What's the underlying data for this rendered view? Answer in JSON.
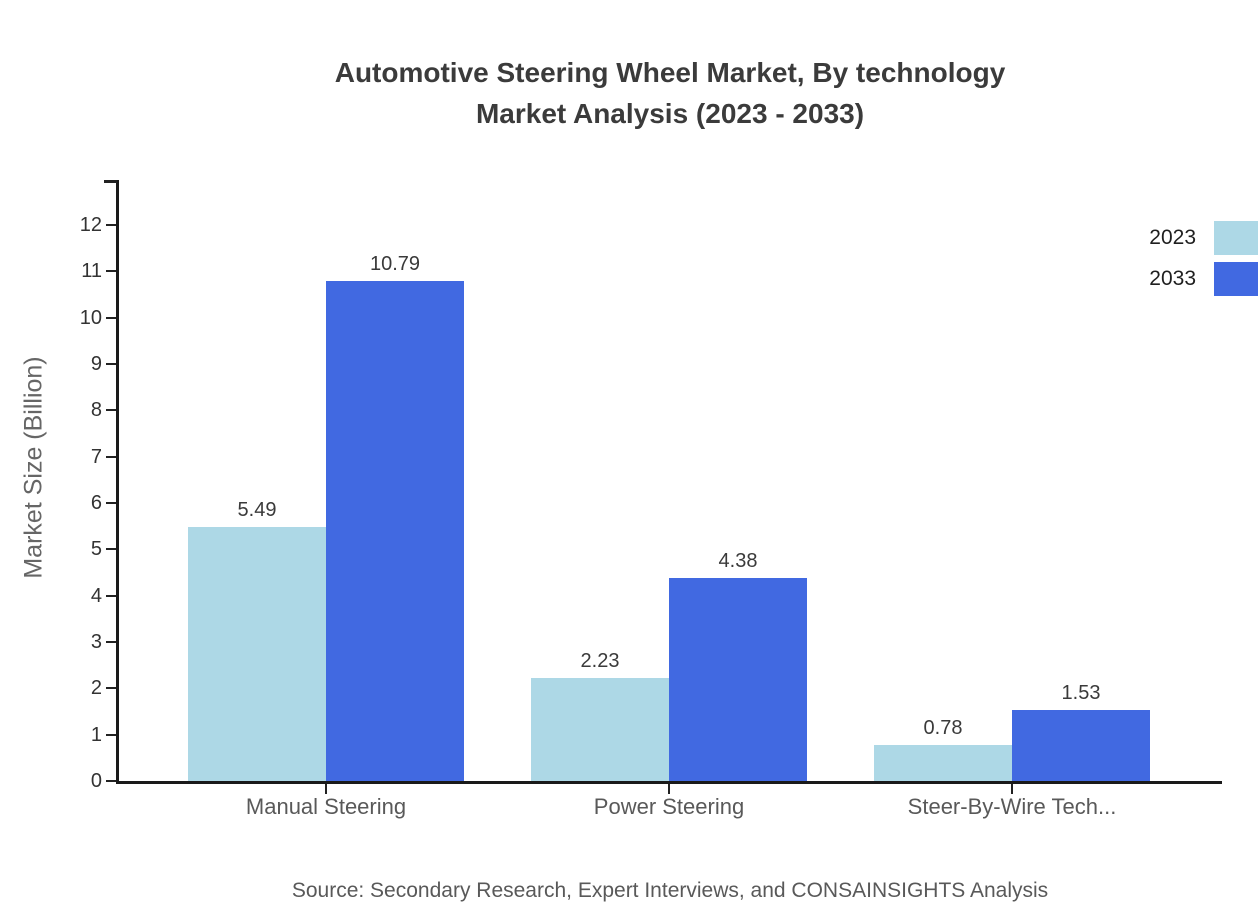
{
  "title": {
    "line1": "Automotive Steering Wheel Market, By technology",
    "line2": "Market Analysis (2023 - 2033)"
  },
  "y_axis_label": "Market Size (Billion)",
  "source_note": "Source: Secondary Research, Expert Interviews, and CONSAINSIGHTS Analysis",
  "colors": {
    "series_2023": "#ADD8E6",
    "series_2033": "#4169E1",
    "axis": "#1a1a1a",
    "title_text": "#3b3b3b",
    "muted_text": "#595959",
    "value_label_text": "#3a3a3a"
  },
  "chart_data": {
    "type": "bar",
    "title": "Automotive Steering Wheel Market, By technology Market Analysis (2023 - 2033)",
    "categories": [
      "Manual Steering",
      "Power Steering",
      "Steer-By-Wire Tech..."
    ],
    "series": [
      {
        "name": "2023",
        "color": "#ADD8E6",
        "values": [
          5.49,
          2.23,
          0.78
        ]
      },
      {
        "name": "2033",
        "color": "#4169E1",
        "values": [
          10.79,
          4.38,
          1.53
        ]
      }
    ],
    "value_labels": [
      "5.49",
      "10.79",
      "2.23",
      "4.38",
      "0.78",
      "1.53"
    ],
    "xlabel": "",
    "ylabel": "Market Size (Billion)",
    "ylim": [
      0,
      12
    ],
    "yticks": [
      0,
      1,
      2,
      3,
      4,
      5,
      6,
      7,
      8,
      9,
      10,
      11,
      12
    ],
    "grid": false,
    "legend_position": "top-right",
    "legend_entries": [
      "2023",
      "2033"
    ]
  }
}
